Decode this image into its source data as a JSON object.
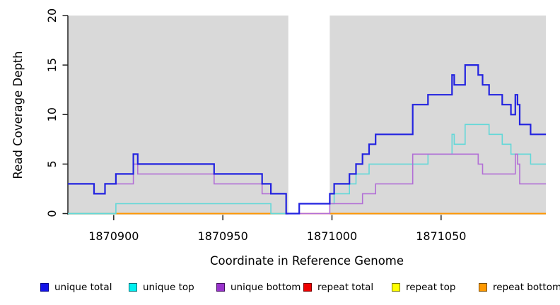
{
  "chart_data": {
    "type": "line",
    "subtype": "step-after",
    "title": "",
    "xlabel": "Coordinate in Reference Genome",
    "ylabel": "Read Coverage Depth",
    "x_axis": {
      "min": 1870879,
      "max": 1871098,
      "ticks": [
        1870900,
        1870950,
        1871000,
        1871050
      ]
    },
    "y_axis": {
      "min": 0,
      "max": 20,
      "ticks": [
        0,
        5,
        10,
        15,
        20
      ]
    },
    "grid": "off",
    "band_color": "#d9d9d9",
    "shaded_regions": [
      {
        "from": 1870879,
        "to": 1870980
      },
      {
        "from": 1870999,
        "to": 1871098
      }
    ],
    "white_gap": {
      "from": 1870980,
      "to": 1870999
    },
    "zero_blend_segments": [
      {
        "from": 1870879,
        "to": 1870901,
        "color": "#90c98f"
      },
      {
        "from": 1870972,
        "to": 1870980,
        "color": "#aecf7c"
      },
      {
        "from": 1870980,
        "to": 1870999,
        "color": "#ef8285"
      }
    ],
    "series": [
      {
        "name": "repeat top",
        "color": "#ffff00",
        "width": 1.6,
        "points": [
          [
            1870879,
            0
          ]
        ]
      },
      {
        "name": "repeat total",
        "color": "#ee1111",
        "width": 1.6,
        "points": [
          [
            1870879,
            0
          ]
        ]
      },
      {
        "name": "repeat bottom",
        "color": "#ff9703",
        "width": 2.0,
        "points": [
          [
            1870879,
            0
          ]
        ]
      },
      {
        "name": "unique top",
        "color": "#63d8d8",
        "width": 1.6,
        "points": [
          [
            1870879,
            0
          ],
          [
            1870901,
            1
          ],
          [
            1870972,
            0
          ],
          [
            1870985,
            1
          ],
          [
            1871001,
            2
          ],
          [
            1871008,
            3
          ],
          [
            1871011,
            4
          ],
          [
            1871017,
            5
          ],
          [
            1871044,
            6
          ],
          [
            1871055,
            8
          ],
          [
            1871056,
            7
          ],
          [
            1871061,
            9
          ],
          [
            1871072,
            8
          ],
          [
            1871078,
            7
          ],
          [
            1871082,
            6
          ],
          [
            1871091,
            5
          ]
        ]
      },
      {
        "name": "unique bottom",
        "color": "#b26fd6",
        "width": 1.6,
        "points": [
          [
            1870879,
            3
          ],
          [
            1870891,
            2
          ],
          [
            1870896,
            3
          ],
          [
            1870909,
            5
          ],
          [
            1870911,
            4
          ],
          [
            1870946,
            3
          ],
          [
            1870968,
            2
          ],
          [
            1870979,
            0
          ],
          [
            1870999,
            1
          ],
          [
            1871014,
            2
          ],
          [
            1871020,
            3
          ],
          [
            1871037,
            6
          ],
          [
            1871067,
            5
          ],
          [
            1871069,
            4
          ],
          [
            1871084,
            6
          ],
          [
            1871085,
            5
          ],
          [
            1871086,
            3
          ]
        ]
      },
      {
        "name": "unique total",
        "color": "#2323e0",
        "width": 2.2,
        "points": [
          [
            1870879,
            3
          ],
          [
            1870891,
            2
          ],
          [
            1870896,
            3
          ],
          [
            1870901,
            4
          ],
          [
            1870909,
            6
          ],
          [
            1870911,
            5
          ],
          [
            1870946,
            4
          ],
          [
            1870968,
            3
          ],
          [
            1870972,
            2
          ],
          [
            1870979,
            0
          ],
          [
            1870985,
            1
          ],
          [
            1870999,
            2
          ],
          [
            1871001,
            3
          ],
          [
            1871008,
            4
          ],
          [
            1871011,
            5
          ],
          [
            1871014,
            6
          ],
          [
            1871017,
            7
          ],
          [
            1871020,
            8
          ],
          [
            1871037,
            11
          ],
          [
            1871044,
            12
          ],
          [
            1871055,
            14
          ],
          [
            1871056,
            13
          ],
          [
            1871061,
            15
          ],
          [
            1871067,
            14
          ],
          [
            1871069,
            13
          ],
          [
            1871072,
            12
          ],
          [
            1871078,
            11
          ],
          [
            1871082,
            10
          ],
          [
            1871084,
            12
          ],
          [
            1871085,
            11
          ],
          [
            1871086,
            9
          ],
          [
            1871091,
            8
          ]
        ]
      }
    ]
  },
  "legend": {
    "items": [
      {
        "label": "unique total",
        "fill": "#1414e8",
        "border": "#000090"
      },
      {
        "label": "unique top",
        "fill": "#00f0f0",
        "border": "#00707a"
      },
      {
        "label": "unique bottom",
        "fill": "#9933cc",
        "border": "#441060"
      },
      {
        "label": "repeat total",
        "fill": "#ee0000",
        "border": "#7a0000"
      },
      {
        "label": "repeat top",
        "fill": "#ffff00",
        "border": "#7a7a00"
      },
      {
        "label": "repeat bottom",
        "fill": "#ff9900",
        "border": "#7a4d00"
      }
    ]
  }
}
